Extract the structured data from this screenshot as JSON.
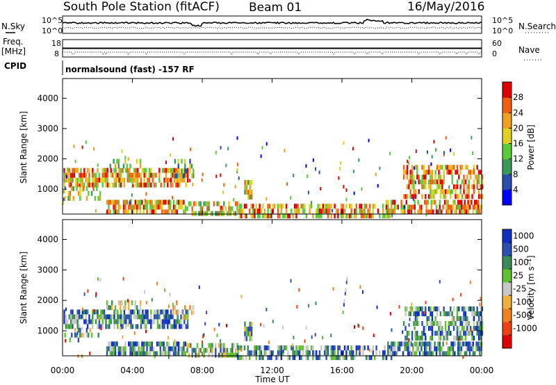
{
  "header": {
    "station": "South Pole Station (fitACF)",
    "beam": "Beam 01",
    "date": "16/May/2016"
  },
  "labels": {
    "nsky": "N.Sky",
    "nsearch": "N.Search",
    "freq": "Freq.",
    "freq_unit": "[MHz]",
    "cpid": "CPID",
    "nave": "Nave",
    "cpid_text": "normalsound (fast) -157 RF"
  },
  "noise_panel": {
    "left_ticks": [
      "10^5",
      "10^0"
    ],
    "right_ticks": [
      "10^5",
      "10^0"
    ]
  },
  "freq_panel": {
    "left_ticks": [
      "18",
      "8"
    ],
    "right_ticks": [
      "60",
      "0"
    ]
  },
  "colors": {
    "power": [
      "#0000ff",
      "#2a4faa",
      "#3a9a5a",
      "#5aca3a",
      "#e0d020",
      "#f0a020",
      "#f06010",
      "#e00000"
    ],
    "velocity": [
      "#e00000",
      "#f04010",
      "#f08020",
      "#f0b040",
      "#c8c8c8",
      "#60c030",
      "#3a8a5a",
      "#2a50b0",
      "#1030c0"
    ]
  },
  "chart_data": [
    {
      "type": "heatmap",
      "name": "power-panel",
      "ylabel": "Slant Range [km]",
      "ylim": [
        180,
        4650
      ],
      "yticks": [
        "1000",
        "2000",
        "3000",
        "4000"
      ],
      "ytick_values": [
        1000,
        2000,
        3000,
        4000
      ],
      "xlim": [
        0,
        24
      ],
      "colorbar_label": "Power [dB]",
      "colorbar_ticks": [
        "4",
        "8",
        "12",
        "16",
        "20",
        "24",
        "28"
      ],
      "colorbar_range": [
        0,
        32
      ]
    },
    {
      "type": "heatmap",
      "name": "velocity-panel",
      "ylabel": "Slant Range [km]",
      "ylim": [
        180,
        4650
      ],
      "yticks": [
        "1000",
        "2000",
        "3000",
        "4000"
      ],
      "ytick_values": [
        1000,
        2000,
        3000,
        4000
      ],
      "xlim": [
        0,
        24
      ],
      "xlabel": "Time UT",
      "xticks": [
        "00:00",
        "04:00",
        "08:00",
        "12:00",
        "16:00",
        "20:00",
        "00:00"
      ],
      "xtick_values": [
        0,
        4,
        8,
        12,
        16,
        20,
        24
      ],
      "colorbar_label": "Velocity [m s⁻¹]",
      "colorbar_ticks": [
        "1000",
        "500",
        "100",
        "25",
        "-25",
        "-100",
        "-500",
        "-1000"
      ]
    }
  ]
}
